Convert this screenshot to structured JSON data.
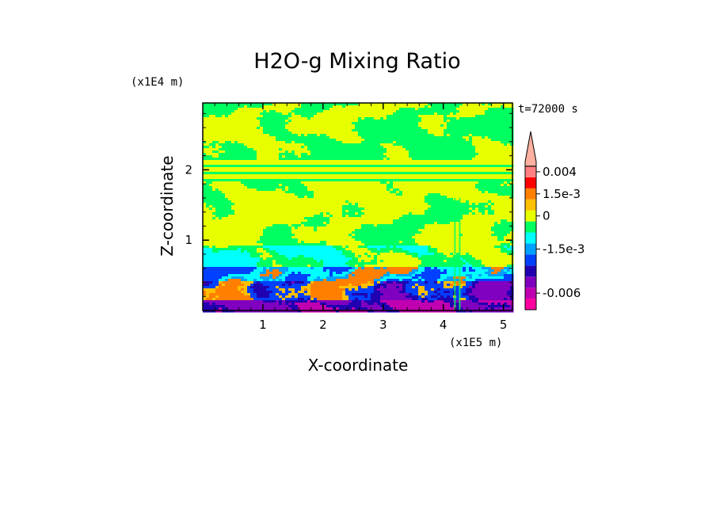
{
  "chart_data": {
    "type": "heatmap",
    "title": "H2O-g Mixing Ratio",
    "xlabel": "X-coordinate",
    "ylabel": "Z-coordinate",
    "x_unit": "(x1E5 m)",
    "y_unit": "(x1E4 m)",
    "time_label": "t=72000 s",
    "xlim": [
      0,
      5.15
    ],
    "ylim": [
      0,
      2.95
    ],
    "x_ticks": [
      "1",
      "2",
      "3",
      "4",
      "5"
    ],
    "x_tick_values": [
      1,
      2,
      3,
      4,
      5
    ],
    "y_ticks": [
      "1",
      "2"
    ],
    "y_tick_values": [
      1,
      2
    ],
    "colorbar": {
      "levels": [
        {
          "color": "#ff00a0"
        },
        {
          "color": "#c000b0"
        },
        {
          "color": "#8000c0"
        },
        {
          "color": "#2000b0"
        },
        {
          "color": "#0040ff"
        },
        {
          "color": "#00a0ff"
        },
        {
          "color": "#00ffff"
        },
        {
          "color": "#00ff60"
        },
        {
          "color": "#e8ff00"
        },
        {
          "color": "#ffc000"
        },
        {
          "color": "#ff8000"
        },
        {
          "color": "#ff0000"
        },
        {
          "color": "#ff8080"
        },
        {
          "color": "#ffb0a0"
        }
      ],
      "tick_labels": [
        {
          "text": "0.004",
          "level_index": 12.5
        },
        {
          "text": "1.5e-3",
          "level_index": 10.5
        },
        {
          "text": "0",
          "level_index": 8.5
        },
        {
          "text": "-1.5e-3",
          "level_index": 5.5
        },
        {
          "text": "-0.006",
          "level_index": 1.5
        }
      ],
      "extend": "max"
    },
    "regions": [
      {
        "z_range": [
          2.35,
          2.95
        ],
        "dominant": "alternating yellow and green patches"
      },
      {
        "z_range": [
          1.85,
          2.15
        ],
        "dominant": "horizontal green and yellow bands"
      },
      {
        "z_range": [
          1.0,
          1.85
        ],
        "dominant": "yellow with green patches"
      },
      {
        "z_range": [
          0.6,
          1.0
        ],
        "dominant": "green with cyan"
      },
      {
        "z_range": [
          0.0,
          0.6
        ],
        "dominant": "blue and purple with orange plumes"
      }
    ]
  }
}
